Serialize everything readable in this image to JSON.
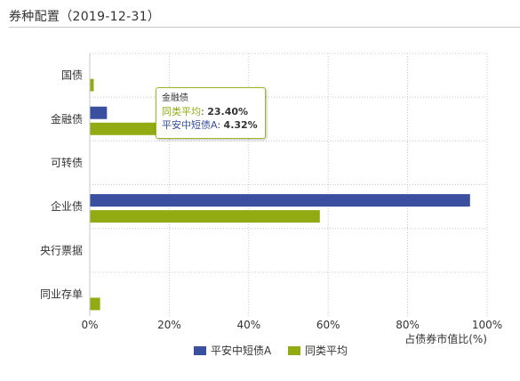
{
  "panel": {
    "title": "券种配置（2019-12-31）"
  },
  "chart_data": {
    "type": "bar",
    "orientation": "horizontal",
    "categories": [
      "国债",
      "金融债",
      "可转债",
      "企业债",
      "央行票据",
      "同业存单"
    ],
    "series": [
      {
        "name": "平安中短债A",
        "color": "#3a4fa0",
        "values": [
          0,
          4.32,
          0,
          95.7,
          0,
          0
        ]
      },
      {
        "name": "同类平均",
        "color": "#93ab12",
        "values": [
          1.0,
          23.4,
          0,
          57.9,
          0,
          2.6
        ]
      }
    ],
    "xlim": [
      0,
      100
    ],
    "xticks": [
      "0%",
      "20%",
      "40%",
      "60%",
      "80%",
      "100%"
    ],
    "xlabel": "占债券市值比(%)",
    "ylabel": "",
    "grid": true,
    "legend": "bottom-center"
  },
  "tooltip": {
    "category": "金融债",
    "rows": [
      {
        "label": "同类平均",
        "value": "23.40%",
        "color": "#93ab12"
      },
      {
        "label": "平安中短债A",
        "value": "4.32%",
        "color": "#3a4fa0"
      }
    ]
  }
}
